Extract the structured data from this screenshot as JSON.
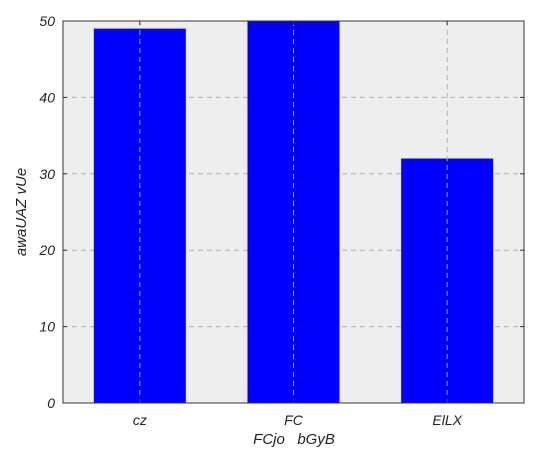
{
  "chart_data": {
    "type": "bar",
    "categories": [
      "cz",
      "FC",
      "ElLX"
    ],
    "values": [
      49,
      50,
      32
    ],
    "title": "",
    "xlabel": "FCjo   bGyB",
    "ylabel": "awaUAZ vUe",
    "ylim": [
      0,
      50
    ],
    "yticks": [
      0,
      10,
      20,
      30,
      40,
      50
    ],
    "grid": true,
    "grid_style": "dashed",
    "bar_color": "#0000ff",
    "background_color": "#eeeeee",
    "grid_color": "#b0b0b0"
  }
}
